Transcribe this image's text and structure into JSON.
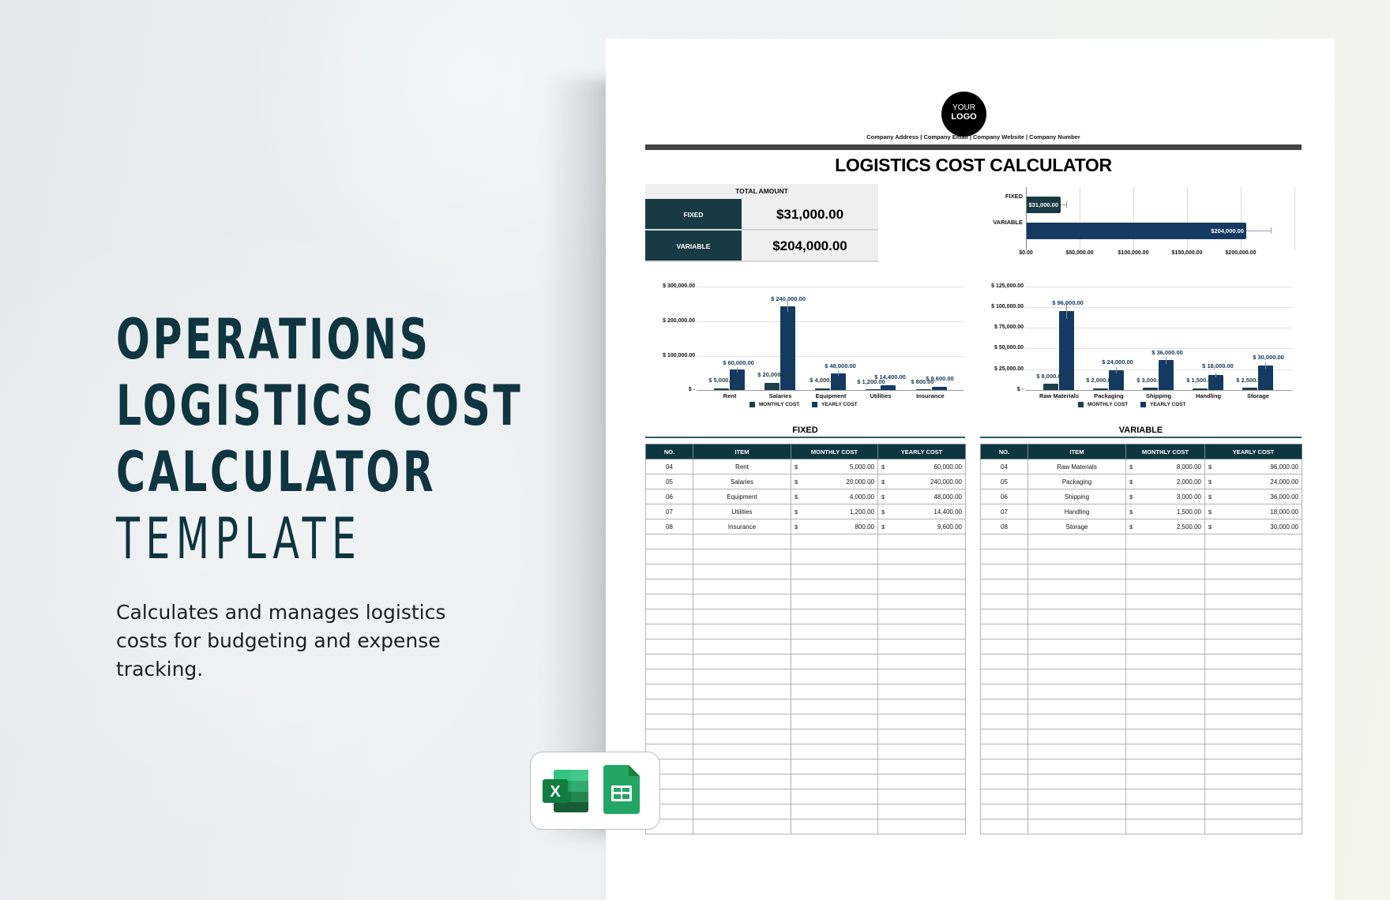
{
  "hero": {
    "title_lines": [
      "OPERATIONS",
      "LOGISTICS COST",
      "CALCULATOR"
    ],
    "title_light": "TEMPLATE",
    "description": "Calculates and manages logistics costs for budgeting and expense tracking."
  },
  "app_badge": {
    "apps": [
      {
        "name": "Microsoft Excel",
        "icon": "excel-icon",
        "glyph": "X",
        "color": "#107c41"
      },
      {
        "name": "Google Sheets",
        "icon": "google-sheets-icon",
        "color": "#23a566"
      }
    ]
  },
  "document": {
    "logo": {
      "line1": "YOUR",
      "line2": "LOGO"
    },
    "company_info": "Company Address | Company Email | Company Website | Company Number",
    "title": "LOGISTICS COST CALCULATOR",
    "summary": {
      "header": "TOTAL AMOUNT",
      "rows": [
        {
          "label": "FIXED",
          "value": "$31,000.00"
        },
        {
          "label": "VARIABLE",
          "value": "$204,000.00"
        }
      ]
    },
    "fixed": {
      "title": "FIXED",
      "columns": [
        "NO.",
        "ITEM",
        "MONTHLY COST",
        "YEARLY COST"
      ],
      "currency": "$",
      "rows": [
        {
          "no": "04",
          "item": "Rent",
          "monthly": "5,000.00",
          "yearly": "60,000.00"
        },
        {
          "no": "05",
          "item": "Salaries",
          "monthly": "20,000.00",
          "yearly": "240,000.00"
        },
        {
          "no": "06",
          "item": "Equipment",
          "monthly": "4,000.00",
          "yearly": "48,000.00"
        },
        {
          "no": "07",
          "item": "Utilities",
          "monthly": "1,200.00",
          "yearly": "14,400.00"
        },
        {
          "no": "08",
          "item": "Insurance",
          "monthly": "800.00",
          "yearly": "9,600.00"
        }
      ],
      "empty_rows": 20
    },
    "variable": {
      "title": "VARIABLE",
      "columns": [
        "NO.",
        "ITEM",
        "MONTHLY COST",
        "YEARLY COST"
      ],
      "currency": "$",
      "rows": [
        {
          "no": "04",
          "item": "Raw Materials",
          "monthly": "8,000.00",
          "yearly": "96,000.00"
        },
        {
          "no": "05",
          "item": "Packaging",
          "monthly": "2,000.00",
          "yearly": "24,000.00"
        },
        {
          "no": "06",
          "item": "Shipping",
          "monthly": "3,000.00",
          "yearly": "36,000.00"
        },
        {
          "no": "07",
          "item": "Handling",
          "monthly": "1,500.00",
          "yearly": "18,000.00"
        },
        {
          "no": "08",
          "item": "Storage",
          "monthly": "2,500.00",
          "yearly": "30,000.00"
        }
      ],
      "empty_rows": 20
    }
  },
  "colors": {
    "dark_teal": "#0e3640",
    "summary_label": "#183a42",
    "monthly_series": "#1e3f47",
    "yearly_series": "#143a62",
    "top_bar": "#444444"
  },
  "chart_data": [
    {
      "type": "bar",
      "orientation": "horizontal",
      "title": "",
      "categories": [
        "FIXED",
        "VARIABLE"
      ],
      "values": [
        31000,
        204000
      ],
      "data_labels": [
        "$31,000.00",
        "$204,000.00"
      ],
      "xlim": [
        0,
        250000
      ],
      "x_ticks": [
        "$0.00",
        "$50,000.00",
        "$100,000.00",
        "$150,000.00",
        "$200,000.00"
      ],
      "grid": true,
      "error_bars": true,
      "colors": [
        "#183a42",
        "#143a62"
      ]
    },
    {
      "type": "bar",
      "title": "",
      "categories": [
        "Rent",
        "Salaries",
        "Equipment",
        "Utilities",
        "Insurance"
      ],
      "series": [
        {
          "name": "MONTHLY COST",
          "values": [
            5000,
            20000,
            4000,
            1200,
            800
          ],
          "labels": [
            "$ 5,000.00",
            "$ 20,000.00",
            "$ 4,000.00",
            "$ 1,200.00",
            "$ 800.00"
          ]
        },
        {
          "name": "YEARLY COST",
          "values": [
            60000,
            240000,
            48000,
            14400,
            9600
          ],
          "labels": [
            "$ 60,000.00",
            "$ 240,000.00",
            "$ 48,000.00",
            "$ 14,400.00",
            "$ 9,600.00"
          ]
        }
      ],
      "ylim": [
        0,
        300000
      ],
      "y_ticks": [
        "$ -",
        "$ 100,000.00",
        "$ 200,000.00",
        "$ 300,000.00"
      ],
      "grid": true,
      "error_bars": true,
      "legend_position": "bottom"
    },
    {
      "type": "bar",
      "title": "",
      "categories": [
        "Raw Materials",
        "Packaging",
        "Shipping",
        "Handling",
        "Storage"
      ],
      "series": [
        {
          "name": "MONTHLY COST",
          "values": [
            8000,
            2000,
            3000,
            1500,
            2500
          ],
          "labels": [
            "$ 8,000.00",
            "$ 2,000.00",
            "$ 3,000.00",
            "$ 1,500.00",
            "$ 2,500.00"
          ]
        },
        {
          "name": "YEARLY COST",
          "values": [
            96000,
            24000,
            36000,
            18000,
            30000
          ],
          "labels": [
            "$ 96,000.00",
            "$ 24,000.00",
            "$ 36,000.00",
            "$ 18,000.00",
            "$ 30,000.00"
          ]
        }
      ],
      "ylim": [
        0,
        125000
      ],
      "y_ticks": [
        "$ -",
        "$ 25,000.00",
        "$ 50,000.00",
        "$ 75,000.00",
        "$ 100,000.00",
        "$ 125,000.00"
      ],
      "grid": true,
      "error_bars": true,
      "legend_position": "bottom"
    }
  ]
}
